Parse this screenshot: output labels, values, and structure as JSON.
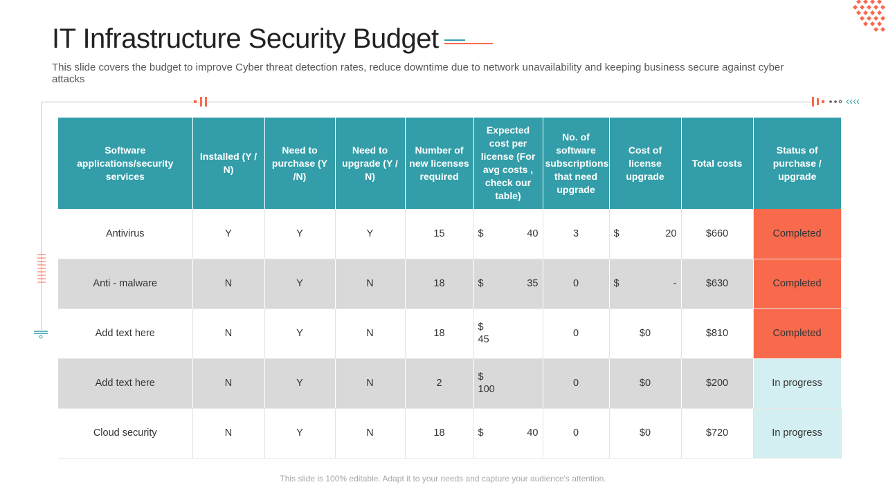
{
  "slide": {
    "title": "IT Infrastructure Security Budget",
    "subtitle": "This slide covers the budget to improve Cyber threat detection rates, reduce downtime due to network unavailability and keeping business secure against cyber attacks",
    "footer": "This slide is 100% editable. Adapt it to your needs and capture your audience's attention."
  },
  "colors": {
    "header": "#339ea9",
    "completed": "#f96a4d",
    "in_progress": "#d4eff1",
    "row_alt": "#d9d9d9"
  },
  "table": {
    "headers": [
      "Software applications/security services",
      "Installed (Y / N)",
      "Need to purchase (Y /N)",
      "Need to upgrade (Y / N)",
      "Number of new licenses required",
      "Expected cost per license (For avg costs , check our table)",
      "No. of software subscriptions that need upgrade",
      "Cost of license upgrade",
      "Total costs",
      "Status of purchase / upgrade"
    ],
    "rows": [
      {
        "name": "Antivirus",
        "installed": "Y",
        "need_purchase": "Y",
        "need_upgrade": "Y",
        "licenses": "15",
        "cost_cur": "$",
        "cost_val": "40",
        "subs": "3",
        "upg_cur": "$",
        "upg_val": "20",
        "total": "$660",
        "status": "Completed"
      },
      {
        "name": "Anti - malware",
        "installed": "N",
        "need_purchase": "Y",
        "need_upgrade": "N",
        "licenses": "18",
        "cost_cur": "$",
        "cost_val": "35",
        "subs": "0",
        "upg_cur": "$",
        "upg_val": "-",
        "total": "$630",
        "status": "Completed"
      },
      {
        "name": "Add text here",
        "installed": "N",
        "need_purchase": "Y",
        "need_upgrade": "N",
        "licenses": "18",
        "cost_cur": "$",
        "cost_val": "45",
        "subs": "0",
        "upg_val": "$0",
        "total": "$810",
        "status": "Completed"
      },
      {
        "name": "Add text here",
        "installed": "N",
        "need_purchase": "Y",
        "need_upgrade": "N",
        "licenses": "2",
        "cost_cur": "$",
        "cost_val": "100",
        "subs": "0",
        "upg_val": "$0",
        "total": "$200",
        "status": "In progress"
      },
      {
        "name": "Cloud security",
        "installed": "N",
        "need_purchase": "Y",
        "need_upgrade": "N",
        "licenses": "18",
        "cost_cur": "$",
        "cost_val": "40",
        "subs": "0",
        "upg_val": "$0",
        "total": "$720",
        "status": "In progress"
      }
    ]
  }
}
